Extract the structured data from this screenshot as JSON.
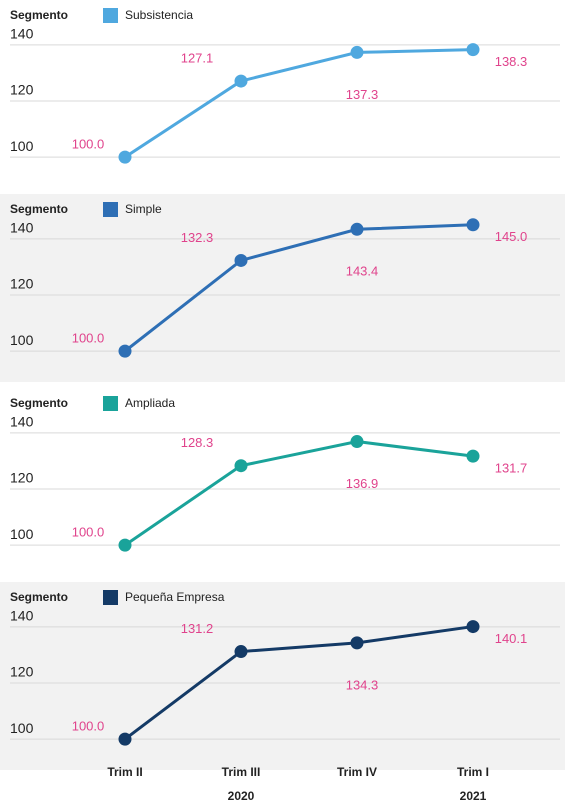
{
  "chart_data": [
    {
      "type": "line",
      "legend_title": "Segmento",
      "ylim": [
        94,
        146
      ],
      "yticks": [
        100,
        120,
        140
      ],
      "grid": true,
      "background": "#ffffff",
      "series": [
        {
          "name": "Subsistencia",
          "color": "#4fa8df",
          "values": [
            100,
            127.1,
            137.3,
            138.3
          ],
          "value_labels": [
            "100.0",
            "127.1",
            "137.3",
            "138.3"
          ]
        }
      ]
    },
    {
      "type": "line",
      "legend_title": "Segmento",
      "ylim": [
        94,
        146
      ],
      "yticks": [
        100,
        120,
        140
      ],
      "grid": true,
      "background": "#f2f2f2",
      "series": [
        {
          "name": "Simple",
          "color": "#2e6fb5",
          "values": [
            100,
            132.3,
            143.4,
            145
          ],
          "value_labels": [
            "100.0",
            "132.3",
            "143.4",
            "145.0"
          ]
        }
      ]
    },
    {
      "type": "line",
      "legend_title": "Segmento",
      "ylim": [
        94,
        146
      ],
      "yticks": [
        100,
        120,
        140
      ],
      "grid": true,
      "background": "#ffffff",
      "series": [
        {
          "name": "Ampliada",
          "color": "#1aa39a",
          "values": [
            100,
            128.3,
            136.9,
            131.7
          ],
          "value_labels": [
            "100.0",
            "128.3",
            "136.9",
            "131.7"
          ]
        }
      ]
    },
    {
      "type": "line",
      "legend_title": "Segmento",
      "ylim": [
        94,
        146
      ],
      "yticks": [
        100,
        120,
        140
      ],
      "grid": true,
      "background": "#f2f2f2",
      "series": [
        {
          "name": "Pequeña Empresa",
          "color": "#143a66",
          "values": [
            100,
            131.2,
            134.3,
            140.1
          ],
          "value_labels": [
            "100.0",
            "131.2",
            "134.3",
            "140.1"
          ]
        }
      ],
      "categories": [
        "Trim II",
        "Trim III",
        "Trim IV",
        "Trim I"
      ],
      "x_group_labels": [
        null,
        "2020",
        null,
        "2021"
      ]
    }
  ]
}
